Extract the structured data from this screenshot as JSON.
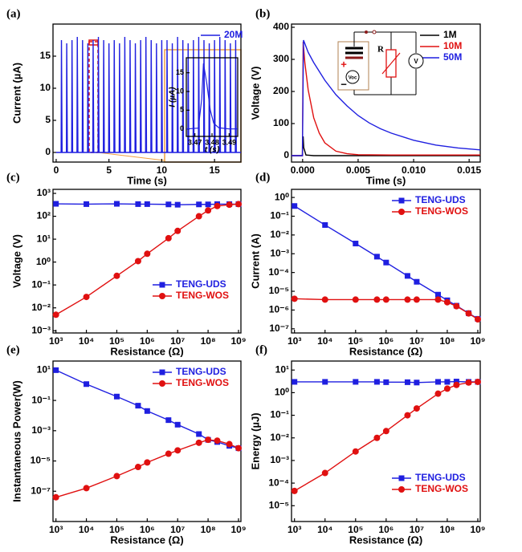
{
  "chart_data": [
    {
      "type": "line",
      "panel": "(a)",
      "xlabel": "Time (s)",
      "ylabel": "Current (µA)",
      "xlim": [
        -0.3,
        17.5
      ],
      "ylim": [
        -1.5,
        20
      ],
      "xticks": [
        0,
        5,
        10,
        15
      ],
      "yticks": [
        0,
        5,
        10,
        15
      ],
      "legend": "upper right",
      "series": [
        {
          "name": "20M",
          "color": "#1f1fe0",
          "x": [
            0,
            0.47,
            0.5,
            0.56,
            0.97,
            1.0,
            1.06,
            1.47,
            1.5,
            1.56,
            1.97,
            2.0,
            2.06,
            2.47,
            2.5,
            2.56,
            2.97,
            3.0,
            3.06,
            3.47,
            3.5,
            3.56,
            3.97,
            4.0,
            4.06,
            4.47,
            4.5,
            4.56,
            4.97,
            5.0,
            5.06,
            5.47,
            5.5,
            5.56,
            5.97,
            6.0,
            6.06,
            6.47,
            6.5,
            6.56,
            6.97,
            7.0,
            7.06,
            7.47,
            7.5,
            7.56,
            7.97,
            8.0,
            8.06,
            8.47,
            8.5,
            8.56,
            8.97,
            9.0,
            9.06,
            9.47,
            9.5,
            9.56,
            9.97,
            10.0,
            10.06,
            10.47,
            10.5,
            10.56,
            10.97,
            11.0,
            11.06,
            11.47,
            11.5,
            11.56,
            11.97,
            12.0,
            12.06,
            12.47,
            12.5,
            12.56,
            12.97,
            13.0,
            13.06,
            13.47,
            13.5,
            13.56,
            13.97,
            14.0,
            14.06,
            14.47,
            14.5,
            14.56,
            14.97,
            15.0,
            15.06,
            15.47,
            15.5,
            15.56,
            15.97,
            16.0,
            16.06,
            16.47,
            16.5,
            16.56,
            16.97,
            17.0,
            17.06,
            17.5
          ],
          "values": [
            0,
            0,
            17.5,
            0,
            0,
            17,
            0,
            0,
            17.5,
            0,
            0,
            18,
            0,
            0,
            17.5,
            0,
            0,
            17,
            0,
            0,
            17.5,
            0,
            0,
            18,
            0,
            0,
            17.5,
            0,
            0,
            17,
            0,
            0,
            17.5,
            0,
            0,
            17,
            0,
            0,
            18,
            0,
            0,
            17.5,
            0,
            0,
            17,
            0,
            0,
            17.5,
            0,
            0,
            18,
            0,
            0,
            17.5,
            0,
            0,
            17,
            0,
            0,
            17.5,
            0,
            0,
            17.5,
            0,
            0,
            17,
            0,
            0,
            18,
            0,
            0,
            17.5,
            0,
            0,
            17,
            0,
            0,
            17.5,
            0,
            0,
            18,
            0,
            0,
            17.5,
            0,
            0,
            17,
            0,
            0,
            17.5,
            0,
            0,
            18,
            0,
            0,
            17.5,
            0,
            0,
            17,
            0,
            0,
            17.5,
            0,
            0
          ]
        }
      ]
    },
    {
      "type": "line",
      "xlabel": "t (s)",
      "ylabel": "I (µA)",
      "xlim": [
        3.465,
        3.495
      ],
      "ylim": [
        -2,
        19
      ],
      "xticks": [
        3.47,
        3.48,
        3.49
      ],
      "yticks": [
        0,
        5,
        10,
        15
      ],
      "series": [
        {
          "color": "#1f1fe0",
          "x": [
            3.465,
            3.472,
            3.474,
            3.475,
            3.477,
            3.479,
            3.481,
            3.484,
            3.49,
            3.495
          ],
          "values": [
            0,
            0.2,
            8,
            17.5,
            12,
            5,
            1.5,
            0.3,
            0,
            0
          ]
        }
      ]
    },
    {
      "type": "line",
      "panel": "(b)",
      "xlabel": "Time (s)",
      "ylabel": "Voltage (V)",
      "xlim": [
        -0.001,
        0.016
      ],
      "ylim": [
        -20,
        410
      ],
      "xticks": [
        {
          "value": 0,
          "label": "0.000"
        },
        {
          "value": 0.005,
          "label": "0.005"
        },
        {
          "value": 0.01,
          "label": "0.010"
        },
        {
          "value": 0.015,
          "label": "0.015"
        }
      ],
      "yticks": [
        0,
        100,
        200,
        300,
        400
      ],
      "legend": "upper right",
      "annotations": [
        "R",
        "V",
        "Voc",
        "+",
        "−"
      ],
      "series": [
        {
          "name": "1M",
          "color": "#000000",
          "x": [
            -0.001,
            -2e-05,
            5e-05,
            0.0001,
            0.0003,
            0.001,
            0.016
          ],
          "values": [
            0,
            0,
            60,
            25,
            2,
            0,
            0
          ]
        },
        {
          "name": "10M",
          "color": "#e01010",
          "x": [
            -0.001,
            -2e-05,
            5e-05,
            0.0002,
            0.0005,
            0.001,
            0.0015,
            0.002,
            0.003,
            0.004,
            0.005,
            0.008,
            0.016
          ],
          "values": [
            0,
            0,
            355,
            290,
            205,
            118,
            70,
            40,
            14,
            6,
            3,
            2,
            2
          ]
        },
        {
          "name": "50M",
          "color": "#1f1fe0",
          "x": [
            -0.001,
            -2e-05,
            8e-05,
            0.0005,
            0.001,
            0.002,
            0.003,
            0.004,
            0.005,
            0.006,
            0.007,
            0.008,
            0.01,
            0.012,
            0.014,
            0.016
          ],
          "values": [
            0,
            0,
            360,
            322,
            290,
            235,
            190,
            155,
            125,
            102,
            84,
            70,
            48,
            33,
            24,
            18
          ]
        }
      ]
    },
    {
      "type": "line",
      "panel": "(c)",
      "xlabel": "Resistance (Ω)",
      "ylabel": "Voltage (V)",
      "xscale": "log",
      "yscale": "log",
      "xlim": [
        800,
        1200000000.0
      ],
      "ylim": [
        0.0008,
        1500
      ],
      "legend": "lower right",
      "xticks": [
        {
          "value": 1000,
          "label": "10³"
        },
        {
          "value": 10000,
          "label": "10⁴"
        },
        {
          "value": 100000,
          "label": "10⁵"
        },
        {
          "value": 1000000,
          "label": "10⁶"
        },
        {
          "value": 10000000,
          "label": "10⁷"
        },
        {
          "value": 100000000,
          "label": "10⁸"
        },
        {
          "value": 1000000000,
          "label": "10⁹"
        }
      ],
      "yticks": [
        {
          "value": 0.001,
          "label": "10⁻³"
        },
        {
          "value": 0.01,
          "label": "10⁻²"
        },
        {
          "value": 0.1,
          "label": "10⁻¹"
        },
        {
          "value": 1,
          "label": "10⁰"
        },
        {
          "value": 10,
          "label": "10¹"
        },
        {
          "value": 100,
          "label": "10²"
        },
        {
          "value": 1000,
          "label": "10³"
        }
      ],
      "x": [
        1000,
        10000,
        100000,
        500000,
        1000000,
        5000000,
        10000000,
        50000000,
        100000000,
        200000000,
        500000000,
        1000000000
      ],
      "series": [
        {
          "name": "TENG-UDS",
          "color": "#1f1fe0",
          "marker": "square",
          "values": [
            350,
            340,
            350,
            340,
            340,
            330,
            320,
            330,
            330,
            340,
            340,
            340
          ]
        },
        {
          "name": "TENG-WOS",
          "color": "#e01010",
          "marker": "circle",
          "values": [
            0.005,
            0.03,
            0.25,
            1.1,
            2.3,
            11,
            23,
            100,
            180,
            280,
            320,
            340
          ]
        }
      ]
    },
    {
      "type": "line",
      "panel": "(d)",
      "xlabel": "Resistance (Ω)",
      "ylabel": "Current (A)",
      "xscale": "log",
      "yscale": "log",
      "xlim": [
        800,
        1200000000.0
      ],
      "ylim": [
        6e-08,
        2.7
      ],
      "legend": "upper right",
      "xticks": [
        {
          "value": 1000,
          "label": "10³"
        },
        {
          "value": 10000,
          "label": "10⁴"
        },
        {
          "value": 100000,
          "label": "10⁵"
        },
        {
          "value": 1000000,
          "label": "10⁶"
        },
        {
          "value": 10000000,
          "label": "10⁷"
        },
        {
          "value": 100000000,
          "label": "10⁸"
        },
        {
          "value": 1000000000,
          "label": "10⁹"
        }
      ],
      "yticks": [
        {
          "value": 1e-07,
          "label": "10⁻⁷"
        },
        {
          "value": 1e-06,
          "label": "10⁻⁶"
        },
        {
          "value": 1e-05,
          "label": "10⁻⁵"
        },
        {
          "value": 0.0001,
          "label": "10⁻⁴"
        },
        {
          "value": 0.001,
          "label": "10⁻³"
        },
        {
          "value": 0.01,
          "label": "10⁻²"
        },
        {
          "value": 0.1,
          "label": "10⁻¹"
        },
        {
          "value": 1,
          "label": "10⁰"
        }
      ],
      "x": [
        1000,
        10000,
        100000,
        500000,
        1000000,
        5000000,
        10000000,
        50000000,
        100000000,
        200000000,
        500000000,
        1000000000
      ],
      "series": [
        {
          "name": "TENG-UDS",
          "color": "#1f1fe0",
          "marker": "square",
          "values": [
            0.35,
            0.034,
            0.0035,
            0.0007,
            0.00034,
            6.6e-05,
            3.2e-05,
            6.6e-06,
            3.3e-06,
            1.7e-06,
            6.8e-07,
            3.4e-07
          ]
        },
        {
          "name": "TENG-WOS",
          "color": "#e01010",
          "marker": "circle",
          "values": [
            4e-06,
            3.6e-06,
            3.6e-06,
            3.6e-06,
            3.6e-06,
            3.6e-06,
            3.6e-06,
            3.6e-06,
            2.6e-06,
            1.6e-06,
            6.6e-07,
            3.2e-07
          ]
        }
      ]
    },
    {
      "type": "line",
      "panel": "(e)",
      "xlabel": "Resistance (Ω)",
      "ylabel": "Instantaneous Power(W)",
      "xscale": "log",
      "yscale": "log",
      "xlim": [
        800,
        1200000000.0
      ],
      "ylim": [
        1e-09,
        40
      ],
      "legend": "upper right",
      "xticks": [
        {
          "value": 1000,
          "label": "10³"
        },
        {
          "value": 10000,
          "label": "10⁴"
        },
        {
          "value": 100000,
          "label": "10⁵"
        },
        {
          "value": 1000000,
          "label": "10⁶"
        },
        {
          "value": 10000000,
          "label": "10⁷"
        },
        {
          "value": 100000000,
          "label": "10⁸"
        },
        {
          "value": 1000000000,
          "label": "10⁹"
        }
      ],
      "yticks": [
        {
          "value": 1e-07,
          "label": "10⁻⁷"
        },
        {
          "value": 1e-05,
          "label": "10⁻⁵"
        },
        {
          "value": 0.001,
          "label": "10⁻³"
        },
        {
          "value": 0.1,
          "label": "10⁻¹"
        },
        {
          "value": 10,
          "label": "10¹"
        }
      ],
      "x": [
        1000,
        10000,
        100000,
        500000,
        1000000,
        5000000,
        10000000,
        50000000,
        100000000,
        200000000,
        500000000,
        1000000000
      ],
      "series": [
        {
          "name": "TENG-UDS",
          "color": "#1f1fe0",
          "marker": "square",
          "values": [
            10,
            1.2,
            0.18,
            0.045,
            0.02,
            0.005,
            0.0025,
            0.0006,
            0.00025,
            0.00018,
            0.0001,
            7e-05
          ]
        },
        {
          "name": "TENG-WOS",
          "color": "#e01010",
          "marker": "circle",
          "values": [
            4e-08,
            1.6e-07,
            1e-06,
            4e-06,
            8e-06,
            3e-05,
            5e-05,
            0.00016,
            0.00025,
            0.00022,
            0.00013,
            7e-05
          ]
        }
      ]
    },
    {
      "type": "line",
      "panel": "(f)",
      "xlabel": "Resistance (Ω)",
      "ylabel": "Energy (µJ)",
      "xscale": "log",
      "yscale": "log",
      "xlim": [
        800,
        1200000000.0
      ],
      "ylim": [
        2e-06,
        25
      ],
      "legend": "lower right",
      "xticks": [
        {
          "value": 1000,
          "label": "10³"
        },
        {
          "value": 10000,
          "label": "10⁴"
        },
        {
          "value": 100000,
          "label": "10⁵"
        },
        {
          "value": 1000000,
          "label": "10⁶"
        },
        {
          "value": 10000000,
          "label": "10⁷"
        },
        {
          "value": 100000000,
          "label": "10⁸"
        },
        {
          "value": 1000000000,
          "label": "10⁹"
        }
      ],
      "yticks": [
        {
          "value": 1e-05,
          "label": "10⁻⁵"
        },
        {
          "value": 0.0001,
          "label": "10⁻⁴"
        },
        {
          "value": 0.001,
          "label": "10⁻³"
        },
        {
          "value": 0.01,
          "label": "10⁻²"
        },
        {
          "value": 0.1,
          "label": "10⁻¹"
        },
        {
          "value": 1,
          "label": "10⁰"
        },
        {
          "value": 10,
          "label": "10¹"
        }
      ],
      "x": [
        1000,
        10000,
        100000,
        500000,
        1000000,
        5000000,
        10000000,
        50000000,
        100000000,
        200000000,
        500000000,
        1000000000
      ],
      "series": [
        {
          "name": "TENG-UDS",
          "color": "#1f1fe0",
          "marker": "square",
          "values": [
            3,
            3,
            3,
            3,
            2.9,
            2.9,
            2.8,
            3,
            3,
            3.1,
            3,
            3
          ]
        },
        {
          "name": "TENG-WOS",
          "color": "#e01010",
          "marker": "circle",
          "values": [
            4.5e-05,
            0.00028,
            0.0025,
            0.01,
            0.02,
            0.1,
            0.2,
            0.9,
            1.5,
            2.2,
            2.8,
            3
          ]
        }
      ]
    }
  ]
}
